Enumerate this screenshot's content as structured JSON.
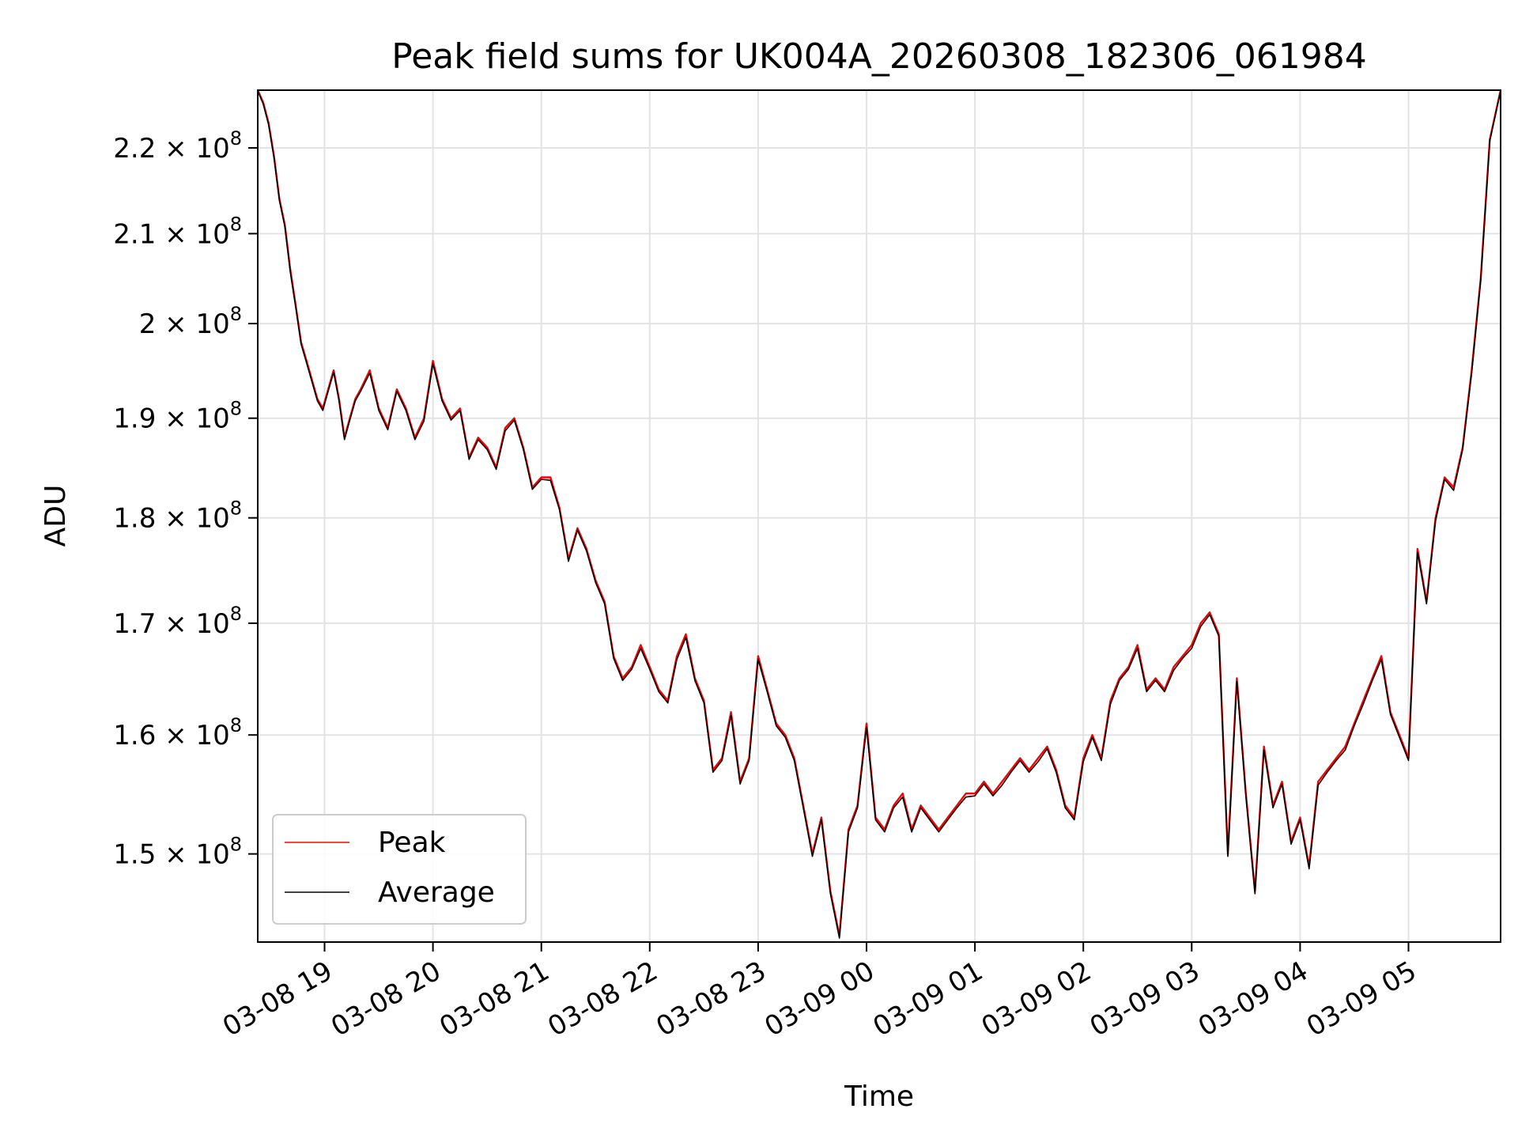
{
  "chart_data": {
    "type": "line",
    "title": "Peak field sums for UK004A_20260308_182306_061984",
    "xlabel": "Time",
    "ylabel": "ADU",
    "y_scale": "log",
    "ylim": [
      143000000,
      227000000
    ],
    "xlim": [
      "2026-03-08 18:23",
      "2026-03-09 05:51"
    ],
    "grid": true,
    "legend_position": "bottom-left",
    "colors": {
      "Peak": "#ff0000",
      "Average": "#000000"
    },
    "x_ticks": [
      {
        "at": "2026-03-08 19:00",
        "label": "03-08 19"
      },
      {
        "at": "2026-03-08 20:00",
        "label": "03-08 20"
      },
      {
        "at": "2026-03-08 21:00",
        "label": "03-08 21"
      },
      {
        "at": "2026-03-08 22:00",
        "label": "03-08 22"
      },
      {
        "at": "2026-03-08 23:00",
        "label": "03-08 23"
      },
      {
        "at": "2026-03-09 00:00",
        "label": "03-09 00"
      },
      {
        "at": "2026-03-09 01:00",
        "label": "03-09 01"
      },
      {
        "at": "2026-03-09 02:00",
        "label": "03-09 02"
      },
      {
        "at": "2026-03-09 03:00",
        "label": "03-09 03"
      },
      {
        "at": "2026-03-09 04:00",
        "label": "03-09 04"
      },
      {
        "at": "2026-03-09 05:00",
        "label": "03-09 05"
      }
    ],
    "y_ticks": [
      {
        "value": 150000000,
        "mantissa": "1.5",
        "base": "× 10",
        "exp": "8"
      },
      {
        "value": 160000000,
        "mantissa": "1.6",
        "base": "× 10",
        "exp": "8"
      },
      {
        "value": 170000000,
        "mantissa": "1.7",
        "base": "× 10",
        "exp": "8"
      },
      {
        "value": 180000000,
        "mantissa": "1.8",
        "base": "× 10",
        "exp": "8"
      },
      {
        "value": 190000000,
        "mantissa": "1.9",
        "base": "× 10",
        "exp": "8"
      },
      {
        "value": 200000000,
        "mantissa": "2",
        "base": "× 10",
        "exp": "8"
      },
      {
        "value": 210000000,
        "mantissa": "2.1",
        "base": "× 10",
        "exp": "8"
      },
      {
        "value": 220000000,
        "mantissa": "2.2",
        "base": "× 10",
        "exp": "8"
      }
    ],
    "series": [
      {
        "name": "Peak",
        "x": [
          "2026-03-08 18:23",
          "2026-03-08 18:26",
          "2026-03-08 18:29",
          "2026-03-08 18:32",
          "2026-03-08 18:35",
          "2026-03-08 18:38",
          "2026-03-08 18:41",
          "2026-03-08 18:44",
          "2026-03-08 18:47",
          "2026-03-08 18:50",
          "2026-03-08 18:53",
          "2026-03-08 18:56",
          "2026-03-08 18:59",
          "2026-03-08 19:02",
          "2026-03-08 19:05",
          "2026-03-08 19:08",
          "2026-03-08 19:11",
          "2026-03-08 19:14",
          "2026-03-08 19:17",
          "2026-03-08 19:20",
          "2026-03-08 19:25",
          "2026-03-08 19:30",
          "2026-03-08 19:35",
          "2026-03-08 19:40",
          "2026-03-08 19:45",
          "2026-03-08 19:50",
          "2026-03-08 19:55",
          "2026-03-08 20:00",
          "2026-03-08 20:05",
          "2026-03-08 20:10",
          "2026-03-08 20:15",
          "2026-03-08 20:20",
          "2026-03-08 20:25",
          "2026-03-08 20:30",
          "2026-03-08 20:35",
          "2026-03-08 20:40",
          "2026-03-08 20:45",
          "2026-03-08 20:50",
          "2026-03-08 20:55",
          "2026-03-08 21:00",
          "2026-03-08 21:05",
          "2026-03-08 21:10",
          "2026-03-08 21:15",
          "2026-03-08 21:20",
          "2026-03-08 21:25",
          "2026-03-08 21:30",
          "2026-03-08 21:35",
          "2026-03-08 21:40",
          "2026-03-08 21:45",
          "2026-03-08 21:50",
          "2026-03-08 21:55",
          "2026-03-08 22:00",
          "2026-03-08 22:05",
          "2026-03-08 22:10",
          "2026-03-08 22:15",
          "2026-03-08 22:20",
          "2026-03-08 22:25",
          "2026-03-08 22:30",
          "2026-03-08 22:35",
          "2026-03-08 22:40",
          "2026-03-08 22:45",
          "2026-03-08 22:50",
          "2026-03-08 22:55",
          "2026-03-08 23:00",
          "2026-03-08 23:05",
          "2026-03-08 23:10",
          "2026-03-08 23:15",
          "2026-03-08 23:20",
          "2026-03-08 23:25",
          "2026-03-08 23:30",
          "2026-03-08 23:35",
          "2026-03-08 23:40",
          "2026-03-08 23:45",
          "2026-03-08 23:50",
          "2026-03-08 23:55",
          "2026-03-09 00:00",
          "2026-03-09 00:05",
          "2026-03-09 00:10",
          "2026-03-09 00:15",
          "2026-03-09 00:20",
          "2026-03-09 00:25",
          "2026-03-09 00:30",
          "2026-03-09 00:35",
          "2026-03-09 00:40",
          "2026-03-09 00:45",
          "2026-03-09 00:50",
          "2026-03-09 00:55",
          "2026-03-09 01:00",
          "2026-03-09 01:05",
          "2026-03-09 01:10",
          "2026-03-09 01:15",
          "2026-03-09 01:20",
          "2026-03-09 01:25",
          "2026-03-09 01:30",
          "2026-03-09 01:35",
          "2026-03-09 01:40",
          "2026-03-09 01:45",
          "2026-03-09 01:50",
          "2026-03-09 01:55",
          "2026-03-09 02:00",
          "2026-03-09 02:05",
          "2026-03-09 02:10",
          "2026-03-09 02:15",
          "2026-03-09 02:20",
          "2026-03-09 02:25",
          "2026-03-09 02:30",
          "2026-03-09 02:35",
          "2026-03-09 02:40",
          "2026-03-09 02:45",
          "2026-03-09 02:50",
          "2026-03-09 02:55",
          "2026-03-09 03:00",
          "2026-03-09 03:05",
          "2026-03-09 03:10",
          "2026-03-09 03:15",
          "2026-03-09 03:20",
          "2026-03-09 03:25",
          "2026-03-09 03:30",
          "2026-03-09 03:35",
          "2026-03-09 03:40",
          "2026-03-09 03:45",
          "2026-03-09 03:50",
          "2026-03-09 03:55",
          "2026-03-09 04:00",
          "2026-03-09 04:05",
          "2026-03-09 04:10",
          "2026-03-09 04:15",
          "2026-03-09 04:20",
          "2026-03-09 04:25",
          "2026-03-09 04:30",
          "2026-03-09 04:35",
          "2026-03-09 04:40",
          "2026-03-09 04:45",
          "2026-03-09 04:50",
          "2026-03-09 04:55",
          "2026-03-09 05:00",
          "2026-03-09 05:05",
          "2026-03-09 05:10",
          "2026-03-09 05:15",
          "2026-03-09 05:20",
          "2026-03-09 05:25",
          "2026-03-09 05:30",
          "2026-03-09 05:35",
          "2026-03-09 05:40",
          "2026-03-09 05:45",
          "2026-03-09 05:51"
        ],
        "values": [
          227000000,
          225500000,
          223000000,
          219000000,
          214000000,
          211000000,
          206000000,
          202000000,
          198000000,
          196000000,
          194000000,
          192000000,
          191000000,
          193000000,
          195000000,
          192000000,
          188000000,
          190000000,
          192000000,
          193000000,
          195000000,
          191000000,
          189000000,
          193000000,
          191000000,
          188000000,
          190000000,
          196000000,
          192000000,
          190000000,
          191000000,
          186000000,
          188000000,
          187000000,
          185000000,
          189000000,
          190000000,
          187000000,
          183000000,
          184000000,
          184000000,
          181000000,
          176000000,
          179000000,
          177000000,
          174000000,
          172000000,
          167000000,
          165000000,
          166000000,
          168000000,
          166000000,
          164000000,
          163000000,
          167000000,
          169000000,
          165000000,
          163000000,
          157000000,
          158000000,
          162000000,
          156000000,
          158000000,
          167000000,
          164000000,
          161000000,
          160000000,
          158000000,
          154000000,
          150000000,
          153000000,
          147000000,
          143500000,
          152000000,
          154000000,
          161000000,
          153000000,
          152000000,
          154000000,
          155000000,
          152000000,
          154000000,
          153000000,
          152000000,
          153000000,
          154000000,
          155000000,
          155000000,
          156000000,
          155000000,
          156000000,
          157000000,
          158000000,
          157000000,
          158000000,
          159000000,
          157000000,
          154000000,
          153000000,
          158000000,
          160000000,
          158000000,
          163000000,
          165000000,
          166000000,
          168000000,
          164000000,
          165000000,
          164000000,
          166000000,
          167000000,
          168000000,
          170000000,
          171000000,
          169000000,
          150000000,
          165000000,
          155000000,
          147000000,
          159000000,
          154000000,
          156000000,
          151000000,
          153000000,
          149000000,
          156000000,
          157000000,
          158000000,
          159000000,
          161000000,
          163000000,
          165000000,
          167000000,
          162000000,
          160000000,
          158000000,
          177000000,
          172000000,
          180000000,
          184000000,
          183000000,
          187000000,
          195000000,
          205000000,
          221000000,
          227000000
        ]
      },
      {
        "name": "Average",
        "x": [
          "2026-03-08 18:23",
          "2026-03-08 18:26",
          "2026-03-08 18:29",
          "2026-03-08 18:32",
          "2026-03-08 18:35",
          "2026-03-08 18:38",
          "2026-03-08 18:41",
          "2026-03-08 18:44",
          "2026-03-08 18:47",
          "2026-03-08 18:50",
          "2026-03-08 18:53",
          "2026-03-08 18:56",
          "2026-03-08 18:59",
          "2026-03-08 19:02",
          "2026-03-08 19:05",
          "2026-03-08 19:08",
          "2026-03-08 19:11",
          "2026-03-08 19:14",
          "2026-03-08 19:17",
          "2026-03-08 19:20",
          "2026-03-08 19:25",
          "2026-03-08 19:30",
          "2026-03-08 19:35",
          "2026-03-08 19:40",
          "2026-03-08 19:45",
          "2026-03-08 19:50",
          "2026-03-08 19:55",
          "2026-03-08 20:00",
          "2026-03-08 20:05",
          "2026-03-08 20:10",
          "2026-03-08 20:15",
          "2026-03-08 20:20",
          "2026-03-08 20:25",
          "2026-03-08 20:30",
          "2026-03-08 20:35",
          "2026-03-08 20:40",
          "2026-03-08 20:45",
          "2026-03-08 20:50",
          "2026-03-08 20:55",
          "2026-03-08 21:00",
          "2026-03-08 21:05",
          "2026-03-08 21:10",
          "2026-03-08 21:15",
          "2026-03-08 21:20",
          "2026-03-08 21:25",
          "2026-03-08 21:30",
          "2026-03-08 21:35",
          "2026-03-08 21:40",
          "2026-03-08 21:45",
          "2026-03-08 21:50",
          "2026-03-08 21:55",
          "2026-03-08 22:00",
          "2026-03-08 22:05",
          "2026-03-08 22:10",
          "2026-03-08 22:15",
          "2026-03-08 22:20",
          "2026-03-08 22:25",
          "2026-03-08 22:30",
          "2026-03-08 22:35",
          "2026-03-08 22:40",
          "2026-03-08 22:45",
          "2026-03-08 22:50",
          "2026-03-08 22:55",
          "2026-03-08 23:00",
          "2026-03-08 23:05",
          "2026-03-08 23:10",
          "2026-03-08 23:15",
          "2026-03-08 23:20",
          "2026-03-08 23:25",
          "2026-03-08 23:30",
          "2026-03-08 23:35",
          "2026-03-08 23:40",
          "2026-03-08 23:45",
          "2026-03-08 23:50",
          "2026-03-08 23:55",
          "2026-03-09 00:00",
          "2026-03-09 00:05",
          "2026-03-09 00:10",
          "2026-03-09 00:15",
          "2026-03-09 00:20",
          "2026-03-09 00:25",
          "2026-03-09 00:30",
          "2026-03-09 00:35",
          "2026-03-09 00:40",
          "2026-03-09 00:45",
          "2026-03-09 00:50",
          "2026-03-09 00:55",
          "2026-03-09 01:00",
          "2026-03-09 01:05",
          "2026-03-09 01:10",
          "2026-03-09 01:15",
          "2026-03-09 01:20",
          "2026-03-09 01:25",
          "2026-03-09 01:30",
          "2026-03-09 01:35",
          "2026-03-09 01:40",
          "2026-03-09 01:45",
          "2026-03-09 01:50",
          "2026-03-09 01:55",
          "2026-03-09 02:00",
          "2026-03-09 02:05",
          "2026-03-09 02:10",
          "2026-03-09 02:15",
          "2026-03-09 02:20",
          "2026-03-09 02:25",
          "2026-03-09 02:30",
          "2026-03-09 02:35",
          "2026-03-09 02:40",
          "2026-03-09 02:45",
          "2026-03-09 02:50",
          "2026-03-09 02:55",
          "2026-03-09 03:00",
          "2026-03-09 03:05",
          "2026-03-09 03:10",
          "2026-03-09 03:15",
          "2026-03-09 03:20",
          "2026-03-09 03:25",
          "2026-03-09 03:30",
          "2026-03-09 03:35",
          "2026-03-09 03:40",
          "2026-03-09 03:45",
          "2026-03-09 03:50",
          "2026-03-09 03:55",
          "2026-03-09 04:00",
          "2026-03-09 04:05",
          "2026-03-09 04:10",
          "2026-03-09 04:15",
          "2026-03-09 04:20",
          "2026-03-09 04:25",
          "2026-03-09 04:30",
          "2026-03-09 04:35",
          "2026-03-09 04:40",
          "2026-03-09 04:45",
          "2026-03-09 04:50",
          "2026-03-09 04:55",
          "2026-03-09 05:00",
          "2026-03-09 05:05",
          "2026-03-09 05:10",
          "2026-03-09 05:15",
          "2026-03-09 05:20",
          "2026-03-09 05:25",
          "2026-03-09 05:30",
          "2026-03-09 05:35",
          "2026-03-09 05:40",
          "2026-03-09 05:45",
          "2026-03-09 05:51"
        ],
        "values": [
          226900000,
          225300000,
          222800000,
          218800000,
          213800000,
          210800000,
          205700000,
          201800000,
          197800000,
          195800000,
          193800000,
          191800000,
          190800000,
          192800000,
          194800000,
          191800000,
          187800000,
          189800000,
          191800000,
          192800000,
          194700000,
          190800000,
          188800000,
          192800000,
          190800000,
          187800000,
          189700000,
          195700000,
          191800000,
          189800000,
          190800000,
          185800000,
          187800000,
          186800000,
          184800000,
          188700000,
          189800000,
          186800000,
          182800000,
          183800000,
          183700000,
          180800000,
          175800000,
          178800000,
          176800000,
          173800000,
          171800000,
          166800000,
          164800000,
          165800000,
          167700000,
          165800000,
          163800000,
          162800000,
          166700000,
          168700000,
          164800000,
          162800000,
          156800000,
          157800000,
          161700000,
          155800000,
          157800000,
          166700000,
          163800000,
          160800000,
          159800000,
          157800000,
          153800000,
          149800000,
          152800000,
          146800000,
          143300000,
          151800000,
          153800000,
          160700000,
          152800000,
          151800000,
          153800000,
          154700000,
          151800000,
          153800000,
          152800000,
          151800000,
          152800000,
          153800000,
          154700000,
          154800000,
          155800000,
          154800000,
          155700000,
          156800000,
          157800000,
          156800000,
          157700000,
          158800000,
          156800000,
          153800000,
          152800000,
          157700000,
          159800000,
          157800000,
          162700000,
          164800000,
          165800000,
          167700000,
          163800000,
          164800000,
          163800000,
          165700000,
          166800000,
          167700000,
          169700000,
          170800000,
          168800000,
          149800000,
          164700000,
          154800000,
          146800000,
          158700000,
          153800000,
          155800000,
          150800000,
          152800000,
          148800000,
          155700000,
          156800000,
          157800000,
          158700000,
          160800000,
          162700000,
          164800000,
          166700000,
          161800000,
          159800000,
          157800000,
          176700000,
          171800000,
          179700000,
          183800000,
          182700000,
          186800000,
          194700000,
          204800000,
          220800000,
          226900000
        ]
      }
    ]
  }
}
